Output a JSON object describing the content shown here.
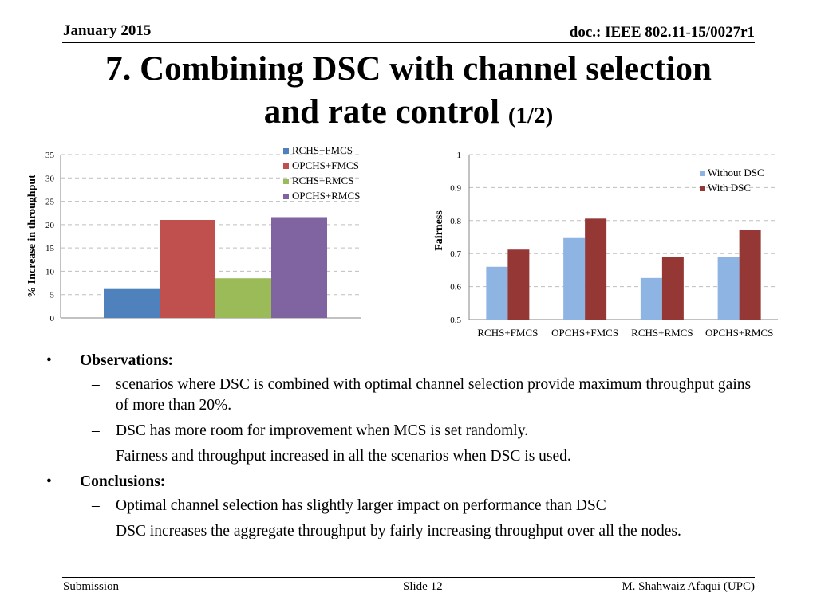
{
  "header": {
    "date": "January 2015",
    "doc": "doc.: IEEE 802.11-15/0027r1"
  },
  "title": {
    "main": "7. Combining DSC with channel selection",
    "line2": "and rate control",
    "suffix": "(1/2)"
  },
  "chart_data": [
    {
      "type": "bar",
      "title": "",
      "xlabel": "",
      "ylabel": "% Increase in throughput",
      "ylim": [
        0,
        35
      ],
      "yticks": [
        "0",
        "5",
        "10",
        "15",
        "20",
        "25",
        "30",
        "35"
      ],
      "grid": true,
      "legend": "top-right",
      "series": [
        {
          "name": "RCHS+FMCS",
          "value": 6.2,
          "color": "#4f81bd"
        },
        {
          "name": "OPCHS+FMCS",
          "value": 21,
          "color": "#c0504d"
        },
        {
          "name": "RCHS+RMCS",
          "value": 8.5,
          "color": "#9bbb59"
        },
        {
          "name": "OPCHS+RMCS",
          "value": 21.6,
          "color": "#8064a2"
        }
      ]
    },
    {
      "type": "bar",
      "title": "",
      "xlabel": "",
      "ylabel": "Fairness",
      "ylim": [
        0.5,
        1
      ],
      "yticks": [
        "0.5",
        "0.6",
        "0.7",
        "0.8",
        "0.9",
        "1"
      ],
      "grid": true,
      "legend": "top-right",
      "categories": [
        "RCHS+FMCS",
        "OPCHS+FMCS",
        "RCHS+RMCS",
        "OPCHS+RMCS"
      ],
      "series": [
        {
          "name": "Without DSC",
          "values": [
            0.66,
            0.747,
            0.626,
            0.689
          ],
          "color": "#8db4e2"
        },
        {
          "name": "With DSC",
          "values": [
            0.712,
            0.806,
            0.69,
            0.772
          ],
          "color": "#953735"
        }
      ]
    }
  ],
  "body": {
    "observations_label": "Observations:",
    "obs": [
      "scenarios where DSC is combined with optimal channel selection provide maximum throughput gains of more than 20%.",
      "DSC has more room for improvement when MCS is set randomly.",
      "Fairness and throughput increased in all the scenarios when DSC is used."
    ],
    "conclusions_label": "Conclusions:",
    "conc": [
      "Optimal channel selection has slightly larger impact on performance than DSC",
      "DSC increases the aggregate throughput by fairly increasing throughput over all the nodes."
    ]
  },
  "footer": {
    "left": "Submission",
    "middle": "Slide 12",
    "right": "M. Shahwaiz Afaqui (UPC)"
  }
}
